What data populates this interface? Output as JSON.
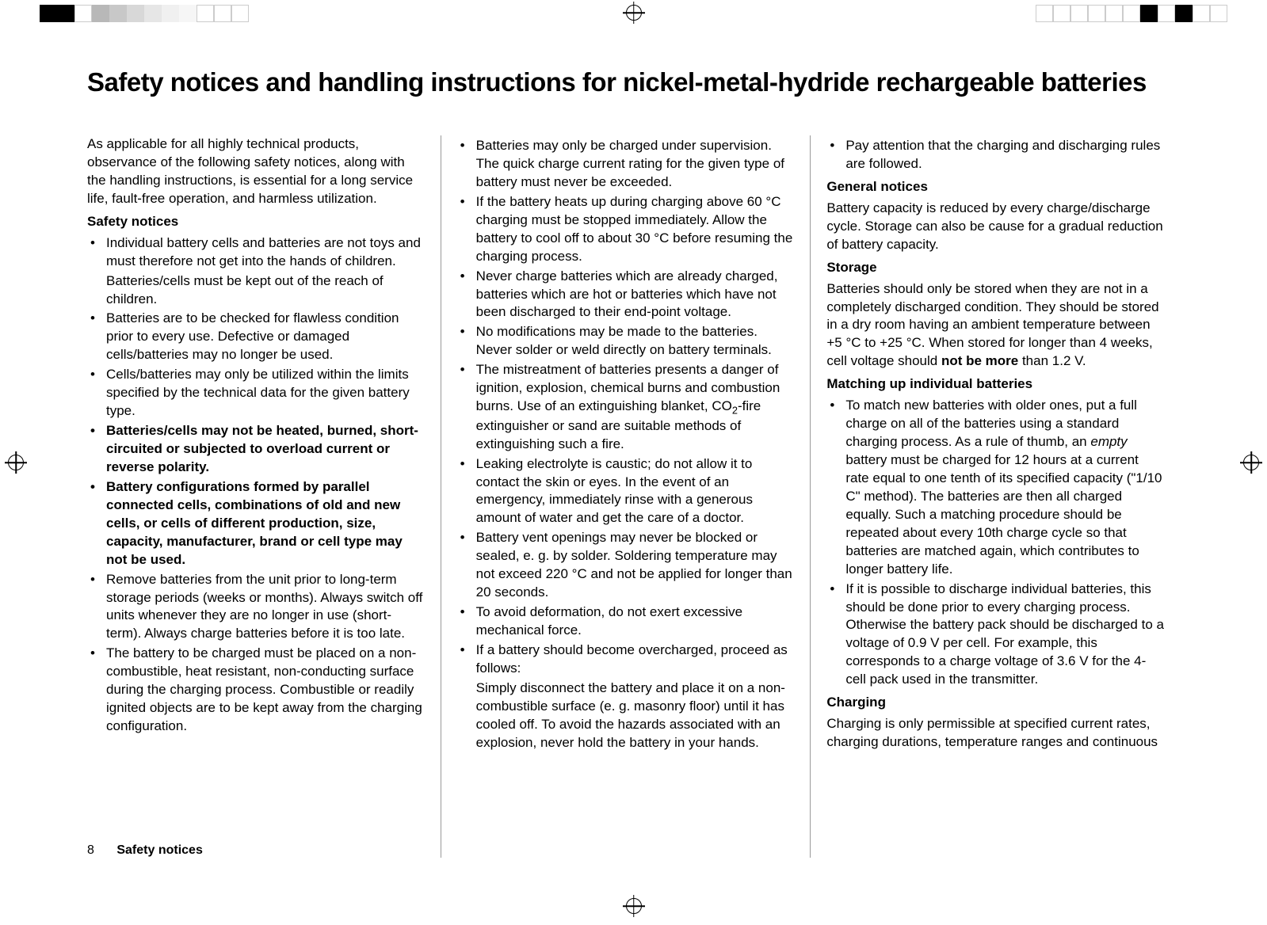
{
  "crop_swatches_left": [
    "#000000",
    "#000000",
    "#ffffff",
    "#b8b8b8",
    "#c8c8c8",
    "#d8d8d8",
    "#e6e6e6",
    "#f0f0f0",
    "#f6f6f6",
    "#ffffff",
    "#ffffff",
    "#ffffff"
  ],
  "crop_swatches_right": [
    "#ffffff",
    "#ffffff",
    "#ffffff",
    "#ffffff",
    "#ffffff",
    "#ffffff",
    "#000000",
    "#ffffff",
    "#000000",
    "#ffffff",
    "#ffffff"
  ],
  "title": "Safety notices and handling instructions for nickel-metal-hydride rechargeable batteries",
  "page_number": "8",
  "footer_section": "Safety notices",
  "col1": {
    "intro": "As applicable for all highly technical products, observance of the following safety notices, along with the handling instructions, is essential for a long service life, fault-free operation, and harmless utilization.",
    "sn_heading": "Safety notices",
    "b1a": "Individual battery cells and batteries are not toys and must therefore not get into the hands of children.",
    "b1b": "Batteries/cells must be kept out of the reach of children.",
    "b2": "Batteries are to be checked for flawless condition prior to every use. Defective or damaged cells/batteries may no longer be used.",
    "b3": "Cells/batteries may only be utilized within the limits specified by the technical data for the given battery type.",
    "b4": "Batteries/cells may not be heated, burned, short-circuited or subjected to overload current or reverse polarity.",
    "b5": "Battery configurations formed by parallel connected cells, combinations of old and new cells, or cells of different production, size, capacity, manufacturer, brand or cell type may not be used.",
    "b6": "Remove batteries from the unit prior to long-term storage periods (weeks or months). Always switch off units whenever they are no longer in use (short-term). Always charge batteries before it is too late.",
    "b7": "The battery to be charged must be placed on a non-combustible, heat resistant, non-conducting surface during the charging process. Combustible or readily ignited objects are to be kept away from the charging configuration."
  },
  "col2": {
    "b1": "Batteries may only be charged under supervision. The quick charge current rating for the given type of battery must never be exceeded.",
    "b2": "If the battery heats up during charging above 60 °C charging must be stopped immediately. Allow the battery to cool off to about 30 °C before resuming the charging process.",
    "b3": "Never charge batteries which are already charged, batteries which are hot or batteries which have not been discharged to their end-point voltage.",
    "b4": "No modifications may be made to the batteries. Never solder or weld directly on battery terminals.",
    "b5a": "The mistreatment of batteries presents a danger of ignition, explosion, chemical burns and combustion burns. Use of an extinguishing blanket, CO",
    "b5sub": "2",
    "b5b": "-fire extinguisher or sand are suitable methods of extinguishing such a fire.",
    "b6": "Leaking electrolyte is caustic; do not allow it to contact the skin or eyes. In the event of an emergency, immediately rinse with a generous amount of water and get the care of a doctor.",
    "b7": "Battery vent openings may never be blocked or sealed, e. g. by solder. Soldering temperature may not exceed 220 °C and not be applied for longer than 20 seconds.",
    "b8": "To avoid deformation, do not exert excessive mechanical force.",
    "b9a": "If a battery should become overcharged, proceed as follows:",
    "b9b": "Simply disconnect the battery and place it on a non-combustible surface (e. g. masonry floor) until it has cooled off. To avoid the hazards associated with an explosion, never hold the battery in your hands."
  },
  "col3": {
    "b1": "Pay attention that the charging and discharging rules are followed.",
    "gn_heading": "General notices",
    "gn_text": "Battery capacity is reduced by every charge/discharge cycle. Storage can also be cause for a gradual reduction of battery capacity.",
    "st_heading": "Storage",
    "st_a": "Batteries should only be stored when they are not in a completely discharged condition. They should be stored in a dry room having an ambient temperature between +5 °C to +25 °C. When stored for longer than 4 weeks, cell voltage should ",
    "st_bold": "not be more",
    "st_b": " than 1.2 V.",
    "mu_heading": "Matching up individual batteries",
    "mu1a": "To match new batteries with older ones, put a full charge on all of the batteries using a standard charging process. As a rule of thumb, an ",
    "mu1_italic": "empty",
    "mu1b": " battery must be charged for 12 hours at a current rate equal to one tenth of its specified capacity (\"1/10 C\" method). The batteries are then all charged equally. Such a matching procedure should be repeated about every 10th charge cycle so that batteries are matched again, which contributes to longer battery life.",
    "mu2": "If it is possible to discharge individual batteries, this should be done prior to every charging process. Otherwise the battery pack should be discharged to a voltage of 0.9 V per cell. For example, this corresponds to a charge voltage of 3.6 V for the 4-cell pack used in the transmitter.",
    "ch_heading": "Charging",
    "ch_text": "Charging is only permissible at specified current rates, charging durations, temperature ranges and continuous"
  }
}
